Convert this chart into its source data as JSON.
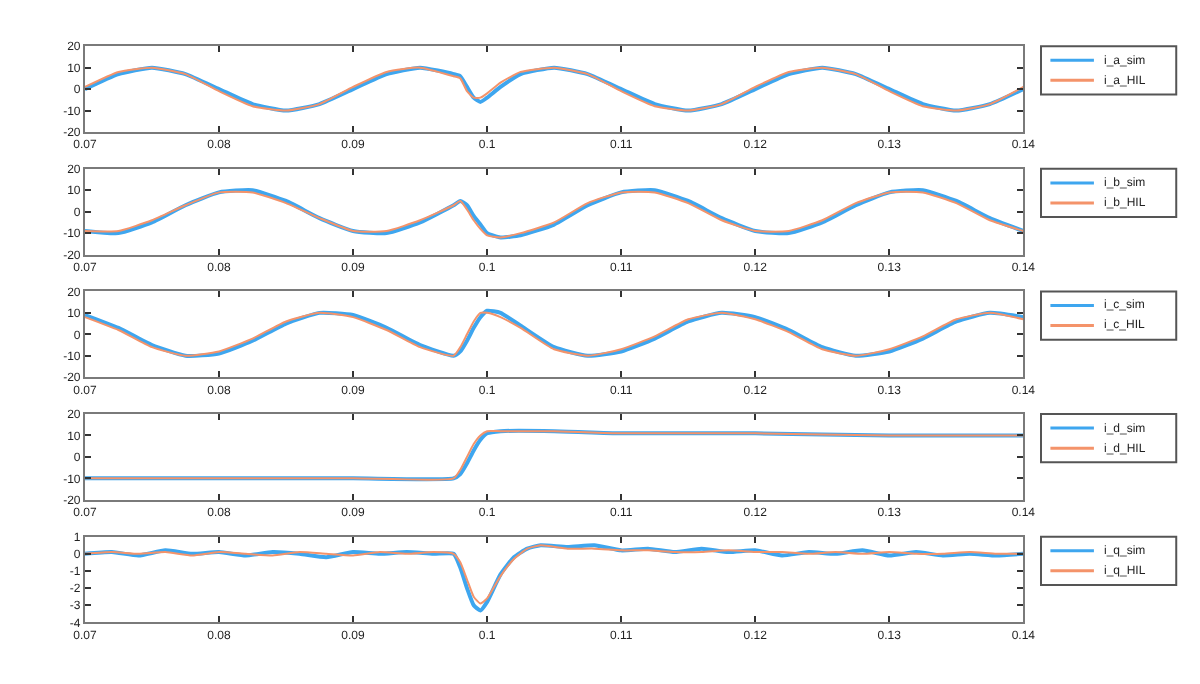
{
  "chart_data": [
    {
      "type": "line",
      "x": [
        0.07,
        0.0725,
        0.075,
        0.0775,
        0.08,
        0.0825,
        0.085,
        0.0875,
        0.09,
        0.0925,
        0.095,
        0.0975,
        0.098,
        0.0985,
        0.099,
        0.0995,
        0.1,
        0.101,
        0.1025,
        0.105,
        0.1075,
        0.11,
        0.1125,
        0.115,
        0.1175,
        0.12,
        0.1225,
        0.125,
        0.1275,
        0.13,
        0.1325,
        0.135,
        0.1375,
        0.14
      ],
      "xlim": [
        0.07,
        0.14
      ],
      "xticks": [
        0.07,
        0.08,
        0.09,
        0.1,
        0.11,
        0.12,
        0.13,
        0.14
      ],
      "ylim": [
        -20,
        20
      ],
      "yticks": [
        -20,
        -10,
        0,
        10,
        20
      ],
      "legend": "top right",
      "marker": "none",
      "line_style": "solid",
      "series": [
        {
          "name": "i_a_sim",
          "color": "#3ea6ef",
          "values": [
            0,
            7,
            10,
            7,
            0,
            -7,
            -10,
            -7,
            0,
            7,
            10,
            7,
            6,
            1,
            -4,
            -6,
            -4,
            1,
            7,
            10,
            7,
            0,
            -7,
            -10,
            -7,
            0,
            7,
            10,
            7,
            0,
            -7,
            -10,
            -7,
            0
          ]
        },
        {
          "name": "i_a_HIL",
          "color": "#f4936a",
          "values": [
            1,
            8,
            10,
            7,
            -1,
            -8,
            -10,
            -7,
            1,
            8,
            10,
            6,
            5,
            -1,
            -4,
            -4,
            -2,
            3,
            8,
            10,
            7,
            -1,
            -8,
            -10,
            -7,
            1,
            8,
            10,
            7,
            -1,
            -8,
            -10,
            -7,
            1
          ]
        }
      ]
    },
    {
      "type": "line",
      "x": [
        0.07,
        0.0725,
        0.075,
        0.0775,
        0.08,
        0.0825,
        0.085,
        0.0875,
        0.09,
        0.0925,
        0.095,
        0.0975,
        0.098,
        0.0985,
        0.099,
        0.0995,
        0.1,
        0.101,
        0.1025,
        0.105,
        0.1075,
        0.11,
        0.1125,
        0.115,
        0.1175,
        0.12,
        0.1225,
        0.125,
        0.1275,
        0.13,
        0.1325,
        0.135,
        0.1375,
        0.14
      ],
      "xlim": [
        0.07,
        0.14
      ],
      "xticks": [
        0.07,
        0.08,
        0.09,
        0.1,
        0.11,
        0.12,
        0.13,
        0.14
      ],
      "ylim": [
        -20,
        20
      ],
      "yticks": [
        -20,
        -10,
        0,
        10,
        20
      ],
      "legend": "top right",
      "marker": "none",
      "line_style": "solid",
      "series": [
        {
          "name": "i_b_sim",
          "color": "#3ea6ef",
          "values": [
            -9,
            -10,
            -5,
            3,
            9,
            10,
            5,
            -3,
            -9,
            -10,
            -5,
            3,
            5,
            3,
            -2,
            -6,
            -10,
            -12,
            -11,
            -6,
            3,
            9,
            10,
            5,
            -3,
            -9,
            -10,
            -5,
            3,
            9,
            10,
            5,
            -3,
            -9
          ]
        },
        {
          "name": "i_b_HIL",
          "color": "#f4936a",
          "values": [
            -9,
            -9,
            -4,
            3,
            9,
            9,
            4,
            -3,
            -9,
            -9,
            -4,
            3,
            5,
            1,
            -4,
            -8,
            -11,
            -12,
            -10,
            -5,
            4,
            9,
            9,
            4,
            -4,
            -9,
            -9,
            -4,
            4,
            9,
            9,
            4,
            -4,
            -9
          ]
        }
      ]
    },
    {
      "type": "line",
      "x": [
        0.07,
        0.0725,
        0.075,
        0.0775,
        0.08,
        0.0825,
        0.085,
        0.0875,
        0.09,
        0.0925,
        0.095,
        0.0975,
        0.098,
        0.0985,
        0.099,
        0.0995,
        0.1,
        0.101,
        0.1025,
        0.105,
        0.1075,
        0.11,
        0.1125,
        0.115,
        0.1175,
        0.12,
        0.1225,
        0.125,
        0.1275,
        0.13,
        0.1325,
        0.135,
        0.1375,
        0.14
      ],
      "xlim": [
        0.07,
        0.14
      ],
      "xticks": [
        0.07,
        0.08,
        0.09,
        0.1,
        0.11,
        0.12,
        0.13,
        0.14
      ],
      "ylim": [
        -20,
        20
      ],
      "yticks": [
        -20,
        -10,
        0,
        10,
        20
      ],
      "legend": "top right",
      "marker": "none",
      "line_style": "solid",
      "series": [
        {
          "name": "i_c_sim",
          "color": "#3ea6ef",
          "values": [
            9,
            3,
            -5,
            -10,
            -9,
            -3,
            5,
            10,
            9,
            3,
            -5,
            -10,
            -8,
            -3,
            3,
            8,
            11,
            10,
            4,
            -6,
            -10,
            -8,
            -2,
            6,
            10,
            8,
            2,
            -6,
            -10,
            -8,
            -2,
            6,
            10,
            8
          ]
        },
        {
          "name": "i_c_HIL",
          "color": "#f4936a",
          "values": [
            8,
            2,
            -6,
            -10,
            -8,
            -2,
            6,
            10,
            8,
            2,
            -6,
            -10,
            -6,
            0,
            6,
            10,
            10,
            8,
            3,
            -7,
            -10,
            -7,
            -1,
            7,
            10,
            7,
            1,
            -7,
            -10,
            -7,
            -1,
            7,
            10,
            7
          ]
        }
      ]
    },
    {
      "type": "line",
      "x": [
        0.07,
        0.08,
        0.09,
        0.0975,
        0.098,
        0.0985,
        0.099,
        0.0995,
        0.1,
        0.101,
        0.105,
        0.11,
        0.12,
        0.13,
        0.14
      ],
      "xlim": [
        0.07,
        0.14
      ],
      "xticks": [
        0.07,
        0.08,
        0.09,
        0.1,
        0.11,
        0.12,
        0.13,
        0.14
      ],
      "ylim": [
        -20,
        20
      ],
      "yticks": [
        -20,
        -10,
        0,
        10,
        20
      ],
      "legend": "top right",
      "marker": "none",
      "line_style": "solid",
      "series": [
        {
          "name": "i_d_sim",
          "color": "#3ea6ef",
          "values": [
            -10,
            -10,
            -10,
            -10,
            -8,
            -3,
            3,
            8,
            11,
            12,
            12,
            11,
            11,
            10,
            10
          ]
        },
        {
          "name": "i_d_HIL",
          "color": "#f4936a",
          "values": [
            -10,
            -10,
            -10,
            -10,
            -6,
            0,
            6,
            10,
            12,
            12,
            12,
            11,
            11,
            10,
            10
          ]
        }
      ]
    },
    {
      "type": "line",
      "x": [
        0.07,
        0.072,
        0.074,
        0.076,
        0.078,
        0.08,
        0.082,
        0.084,
        0.086,
        0.088,
        0.09,
        0.092,
        0.094,
        0.096,
        0.0975,
        0.098,
        0.0985,
        0.099,
        0.0995,
        0.1,
        0.101,
        0.102,
        0.103,
        0.104,
        0.106,
        0.108,
        0.11,
        0.112,
        0.114,
        0.116,
        0.118,
        0.12,
        0.122,
        0.124,
        0.126,
        0.128,
        0.13,
        0.132,
        0.134,
        0.136,
        0.138,
        0.14
      ],
      "xlim": [
        0.07,
        0.14
      ],
      "xticks": [
        0.07,
        0.08,
        0.09,
        0.1,
        0.11,
        0.12,
        0.13,
        0.14
      ],
      "ylim": [
        -4,
        1
      ],
      "yticks": [
        -4,
        -3,
        -2,
        -1,
        0,
        1
      ],
      "legend": "top right",
      "marker": "none",
      "line_style": "solid",
      "series": [
        {
          "name": "i_q_sim",
          "color": "#3ea6ef",
          "values": [
            0,
            0.1,
            -0.1,
            0.2,
            0,
            0.1,
            -0.1,
            0.1,
            0,
            -0.2,
            0.1,
            0,
            0.1,
            0,
            0,
            -0.8,
            -2,
            -3,
            -3.3,
            -2.8,
            -1.2,
            -0.2,
            0.3,
            0.5,
            0.4,
            0.5,
            0.2,
            0.3,
            0.1,
            0.3,
            0.1,
            0.2,
            -0.1,
            0.1,
            0,
            0.2,
            -0.1,
            0.1,
            -0.1,
            0,
            -0.1,
            0
          ]
        },
        {
          "name": "i_q_HIL",
          "color": "#f4936a",
          "values": [
            0,
            0.1,
            0,
            0.1,
            -0.1,
            0.1,
            0,
            -0.1,
            0.1,
            0,
            -0.1,
            0.1,
            0,
            0.1,
            0,
            -0.5,
            -1.5,
            -2.5,
            -2.9,
            -2.6,
            -1.3,
            -0.3,
            0.3,
            0.5,
            0.3,
            0.3,
            0.2,
            0.2,
            0.1,
            0.1,
            0.2,
            0.1,
            0.1,
            0,
            0.1,
            0,
            0.1,
            0,
            0,
            0.1,
            0,
            0
          ]
        }
      ]
    }
  ]
}
